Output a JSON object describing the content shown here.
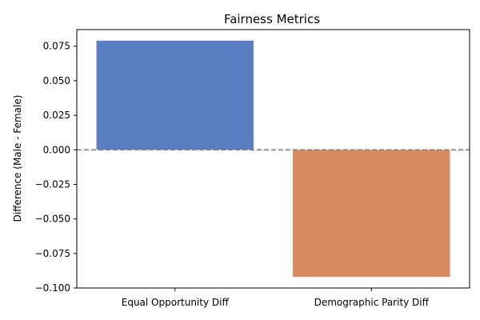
{
  "chart_data": {
    "type": "bar",
    "title": "Fairness Metrics",
    "xlabel": "",
    "ylabel": "Difference (Male - Female)",
    "categories": [
      "Equal Opportunity Diff",
      "Demographic Parity Diff"
    ],
    "values": [
      0.079,
      -0.092
    ],
    "colors": [
      "#5b7ec2",
      "#d88b60"
    ],
    "ylim": [
      -0.1,
      0.087
    ],
    "yticks": [
      -0.1,
      -0.075,
      -0.05,
      -0.025,
      0.0,
      0.025,
      0.05,
      0.075
    ],
    "ytick_labels": [
      "−0.100",
      "−0.075",
      "−0.050",
      "−0.025",
      "0.000",
      "0.025",
      "0.050",
      "0.075"
    ],
    "reference_line": {
      "y": 0.0,
      "style": "dashed",
      "color": "#808080"
    },
    "grid": false,
    "legend": "none"
  }
}
